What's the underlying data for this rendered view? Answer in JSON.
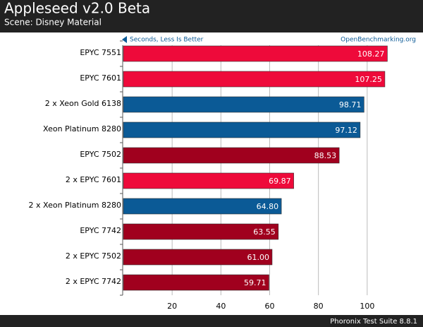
{
  "chart_data": {
    "type": "hbar",
    "title": "Appleseed v2.0 Beta",
    "subtitle": "Scene: Disney Material",
    "axis_note": "Seconds, Less Is Better",
    "source": "OpenBenchmarking.org",
    "footer": "Phoronix Test Suite 8.8.1",
    "categories": [
      "EPYC 7551",
      "EPYC 7601",
      "2 x Xeon Gold 6138",
      "Xeon Platinum 8280",
      "EPYC 7502",
      "2 x EPYC 7601",
      "2 x Xeon Platinum 8280",
      "EPYC 7742",
      "2 x EPYC 7502",
      "2 x EPYC 7742"
    ],
    "values": [
      108.27,
      107.25,
      98.71,
      97.12,
      88.53,
      69.87,
      64.8,
      63.55,
      61.0,
      59.71
    ],
    "value_labels": [
      "108.27",
      "107.25",
      "98.71",
      "97.12",
      "88.53",
      "69.87",
      "64.80",
      "63.55",
      "61.00",
      "59.71"
    ],
    "colors": [
      "#ee0a3a",
      "#ee0a3a",
      "#0b5a96",
      "#0b5a96",
      "#a0001e",
      "#ee0a3a",
      "#0b5a96",
      "#a0001e",
      "#a0001e",
      "#a0001e"
    ],
    "xlim": [
      0,
      120
    ],
    "xticks": [
      20,
      40,
      60,
      80,
      100
    ],
    "grid": true
  }
}
